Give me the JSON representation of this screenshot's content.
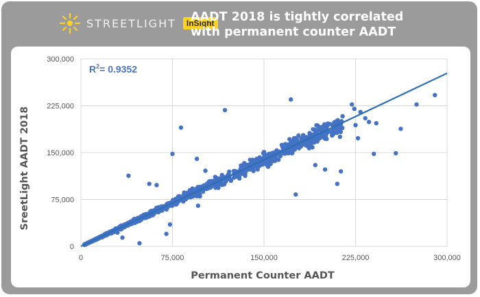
{
  "header": {
    "brand": "STREETLIGHT",
    "badge": "InSight",
    "title_line1": "AADT 2018 is tightly correlated",
    "title_line2": "with permanent counter AADT",
    "logo_icon": "sun-burst-icon"
  },
  "colors": {
    "card_background": "#9b9b9b",
    "badge_background": "#ffd21f",
    "points": "#4472c4",
    "trendline": "#2c6fb5",
    "gridlines": "#d9d9d9"
  },
  "chart_data": {
    "type": "scatter",
    "xlabel": "Permanent Counter AADT",
    "ylabel": "SreetLight AADT 2018",
    "xlim": [
      0,
      300000
    ],
    "ylim": [
      0,
      300000
    ],
    "x_ticks": [
      "0",
      "75,000",
      "150,000",
      "225,000",
      "300,000"
    ],
    "y_ticks": [
      "0",
      "75,000",
      "150,000",
      "225,000",
      "300,000"
    ],
    "x_tick_values": [
      0,
      75000,
      150000,
      225000,
      300000
    ],
    "y_tick_values": [
      0,
      75000,
      150000,
      225000,
      300000
    ],
    "grid": true,
    "annotation": {
      "r2_prefix": "R",
      "r2_exp": "2",
      "r2_value": "= 0.9352"
    },
    "trendline": {
      "x": [
        0,
        300000
      ],
      "y": [
        0,
        277000
      ]
    },
    "point_density_note": null,
    "outliers": [
      {
        "x": 290000,
        "y": 242000
      },
      {
        "x": 275000,
        "y": 227000
      },
      {
        "x": 262000,
        "y": 188000
      },
      {
        "x": 258000,
        "y": 149000
      },
      {
        "x": 240000,
        "y": 148000
      },
      {
        "x": 236000,
        "y": 199000
      },
      {
        "x": 229000,
        "y": 215000
      },
      {
        "x": 224000,
        "y": 220000
      },
      {
        "x": 222000,
        "y": 227000
      },
      {
        "x": 227000,
        "y": 173000
      },
      {
        "x": 192000,
        "y": 130000
      },
      {
        "x": 172000,
        "y": 235000
      },
      {
        "x": 187000,
        "y": 157000
      },
      {
        "x": 176000,
        "y": 83000
      },
      {
        "x": 150000,
        "y": 151000
      },
      {
        "x": 118000,
        "y": 218000
      },
      {
        "x": 110000,
        "y": 111000
      },
      {
        "x": 82000,
        "y": 190000
      },
      {
        "x": 75000,
        "y": 148000
      },
      {
        "x": 39000,
        "y": 113000
      },
      {
        "x": 56000,
        "y": 100000
      },
      {
        "x": 62000,
        "y": 98000
      },
      {
        "x": 46000,
        "y": 42000
      },
      {
        "x": 48000,
        "y": 5000
      },
      {
        "x": 70000,
        "y": 20000
      },
      {
        "x": 73000,
        "y": 35000
      },
      {
        "x": 96000,
        "y": 65000
      },
      {
        "x": 30000,
        "y": 22000
      },
      {
        "x": 34000,
        "y": 14000
      },
      {
        "x": 210000,
        "y": 100000
      },
      {
        "x": 213000,
        "y": 120000
      },
      {
        "x": 200000,
        "y": 123000
      },
      {
        "x": 225000,
        "y": 194000
      },
      {
        "x": 233000,
        "y": 205000
      },
      {
        "x": 242000,
        "y": 197000
      },
      {
        "x": 149000,
        "y": 131000
      },
      {
        "x": 131000,
        "y": 125000
      },
      {
        "x": 102000,
        "y": 121000
      },
      {
        "x": 95000,
        "y": 140000
      }
    ],
    "cluster": {
      "n": 1400,
      "slope": 0.92,
      "x_min": 3000,
      "x_max": 215000,
      "spread_fraction": 0.16,
      "seed": 7
    }
  }
}
